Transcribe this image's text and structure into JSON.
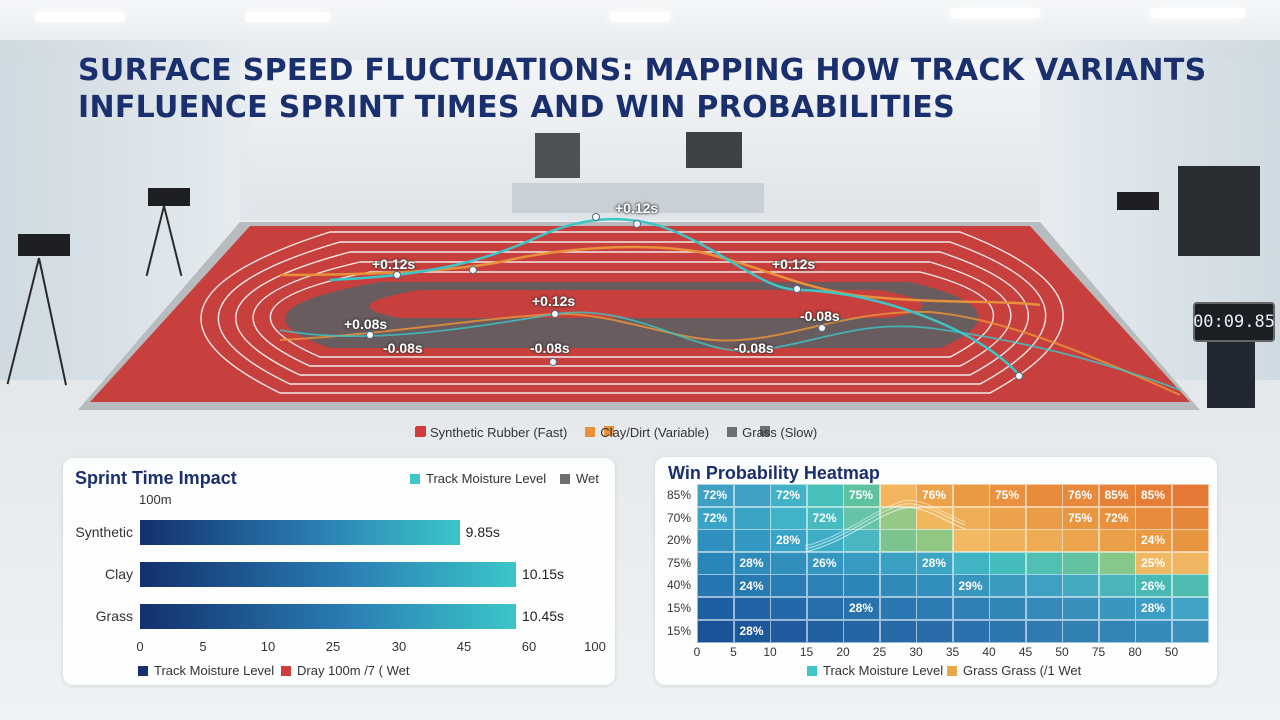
{
  "title": "SURFACE SPEED FLUCTUATIONS: MAPPING HOW TRACK VARIANTS INFLUENCE SPRINT TIMES AND WIN PROBABILITIES",
  "colors": {
    "synthetic": "#d23b3b",
    "clay": "#e8913a",
    "grass": "#6e6e6e",
    "teal": "#3cc6c8",
    "navy": "#1a2f6e"
  },
  "track_annotations": [
    {
      "label": "+0.12s"
    },
    {
      "label": "+0.12s"
    },
    {
      "label": "+0.12s"
    },
    {
      "label": "+0.12s"
    },
    {
      "label": "+0.08s"
    },
    {
      "label": "-0.08s"
    },
    {
      "label": "-0.08s"
    },
    {
      "label": "-0.08s"
    },
    {
      "label": "-0.08s"
    }
  ],
  "main_legend": [
    {
      "label": "Synthetic Rubber (Fast)",
      "color": "#d23b3b"
    },
    {
      "label": "Clay/Dirt (Variable)",
      "color": "#e8913a"
    },
    {
      "label": "Grass (Slow)",
      "color": "#6e6e6e"
    }
  ],
  "clock_display": "00:09.85",
  "chart_data": [
    {
      "type": "bar",
      "title": "Sprint Time Impact",
      "subtitle": "100m",
      "legend_top": [
        {
          "label": "Track Moisture Level",
          "color": "#3cc6c8"
        },
        {
          "label": "Wet",
          "color": "#6e6e6e"
        }
      ],
      "categories": [
        "Synthetic",
        "Clay",
        "Grass"
      ],
      "values": [
        9.85,
        10.15,
        10.45
      ],
      "value_labels": [
        "9.85s",
        "10.15s",
        "10.45s"
      ],
      "bar_extent": [
        44,
        57,
        57
      ],
      "x_ticks": [
        "0",
        "5",
        "10",
        "25",
        "30",
        "45",
        "60",
        "100"
      ],
      "legend_bottom": [
        {
          "label": "Track Moisture Level",
          "color": "#1a2f6e"
        },
        {
          "label": "Dray 100m /7 ( Wet",
          "color": "#d23b3b"
        }
      ]
    },
    {
      "type": "heatmap",
      "title": "Win Probability Heatmap",
      "y_labels": [
        "85%",
        "70%",
        "20%",
        "75%",
        "40%",
        "15%",
        "15%"
      ],
      "x_labels": [
        "0",
        "5",
        "10",
        "15",
        "20",
        "25",
        "30",
        "35",
        "40",
        "45",
        "50",
        "75",
        "80",
        "50"
      ],
      "cell_labels": [
        {
          "row": 0,
          "col": 0,
          "text": "72%"
        },
        {
          "row": 0,
          "col": 2,
          "text": "72%"
        },
        {
          "row": 0,
          "col": 4,
          "text": "75%"
        },
        {
          "row": 0,
          "col": 6,
          "text": "76%"
        },
        {
          "row": 0,
          "col": 8,
          "text": "75%"
        },
        {
          "row": 0,
          "col": 10,
          "text": "76%"
        },
        {
          "row": 0,
          "col": 11,
          "text": "85%"
        },
        {
          "row": 0,
          "col": 12,
          "text": "85%"
        },
        {
          "row": 1,
          "col": 0,
          "text": "72%"
        },
        {
          "row": 1,
          "col": 3,
          "text": "72%"
        },
        {
          "row": 1,
          "col": 10,
          "text": "75%"
        },
        {
          "row": 1,
          "col": 11,
          "text": "72%"
        },
        {
          "row": 2,
          "col": 2,
          "text": "28%"
        },
        {
          "row": 2,
          "col": 12,
          "text": "24%"
        },
        {
          "row": 3,
          "col": 1,
          "text": "28%"
        },
        {
          "row": 3,
          "col": 3,
          "text": "26%"
        },
        {
          "row": 3,
          "col": 6,
          "text": "28%"
        },
        {
          "row": 3,
          "col": 12,
          "text": "25%"
        },
        {
          "row": 4,
          "col": 1,
          "text": "24%"
        },
        {
          "row": 4,
          "col": 7,
          "text": "29%"
        },
        {
          "row": 4,
          "col": 12,
          "text": "26%"
        },
        {
          "row": 5,
          "col": 4,
          "text": "28%"
        },
        {
          "row": 5,
          "col": 12,
          "text": "28%"
        },
        {
          "row": 6,
          "col": 1,
          "text": "28%"
        }
      ],
      "legend": [
        {
          "label": "Track Moisture Level",
          "color": "#3cc6c8"
        },
        {
          "label": "Grass Grass (/1 Wet",
          "color": "#e8a84a"
        }
      ]
    }
  ]
}
